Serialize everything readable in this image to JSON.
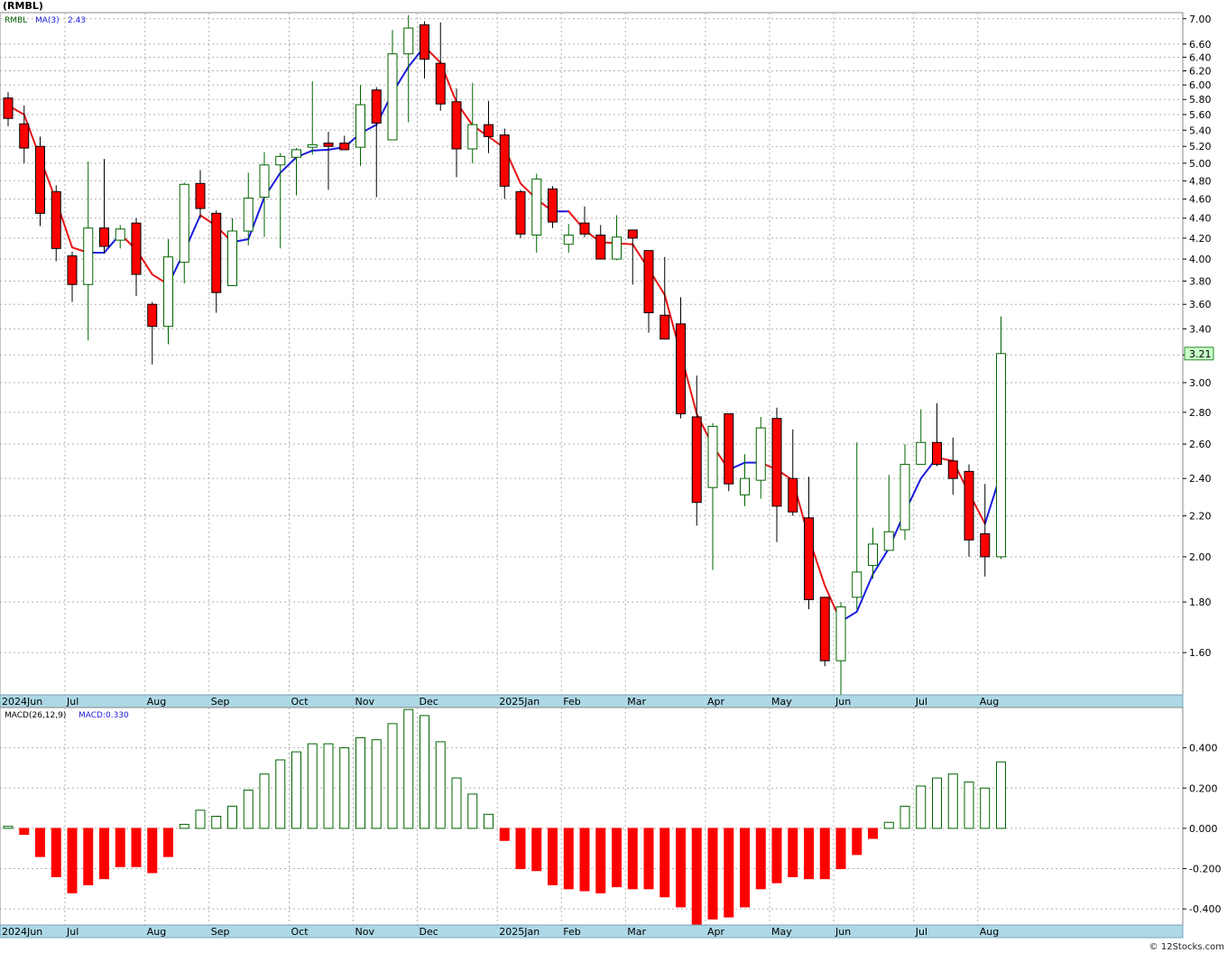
{
  "chart_title": "(RMBL)",
  "watermark": "© 12Stocks.com",
  "colors": {
    "up_body": "#ffffff",
    "up_border": "#006400",
    "down_body": "#ff0000",
    "down_border": "#000000",
    "ma_up": "#1a1adc",
    "ma_down": "#e81414",
    "grid": "#b0b0b0",
    "axis_bar": "#add8e6",
    "last_price_bg": "#c8ffc8",
    "macd_up_border": "#006400",
    "macd_down": "#ff0000"
  },
  "chart_data": [
    {
      "type": "candlestick",
      "symbol_label": "RMBL",
      "ma_label": "MA(3)",
      "ma_value": "2.43",
      "last_price": "3.21",
      "y_scale": "log",
      "ylim": [
        1.45,
        7.1
      ],
      "y_ticks": [
        "1.60",
        "1.80",
        "2.00",
        "2.20",
        "2.40",
        "2.60",
        "2.80",
        "3.00",
        "3.20",
        "3.40",
        "3.60",
        "3.80",
        "4.00",
        "4.20",
        "4.40",
        "4.60",
        "4.80",
        "5.00",
        "5.20",
        "5.40",
        "5.60",
        "5.80",
        "6.00",
        "6.20",
        "6.40",
        "6.60",
        "7.00"
      ],
      "x_labels": [
        {
          "label": "2024Jun",
          "index": 0
        },
        {
          "label": "Jul",
          "index": 4
        },
        {
          "label": "Aug",
          "index": 9
        },
        {
          "label": "Sep",
          "index": 13
        },
        {
          "label": "Oct",
          "index": 18
        },
        {
          "label": "Nov",
          "index": 22
        },
        {
          "label": "Dec",
          "index": 26
        },
        {
          "label": "2025Jan",
          "index": 31
        },
        {
          "label": "Feb",
          "index": 35
        },
        {
          "label": "Mar",
          "index": 39
        },
        {
          "label": "Apr",
          "index": 44
        },
        {
          "label": "May",
          "index": 48
        },
        {
          "label": "Jun",
          "index": 52
        },
        {
          "label": "Jul",
          "index": 57
        },
        {
          "label": "Aug",
          "index": 61
        }
      ],
      "candles": [
        {
          "o": 5.82,
          "h": 5.9,
          "l": 5.45,
          "c": 5.55
        },
        {
          "o": 5.48,
          "h": 5.72,
          "l": 5.0,
          "c": 5.18
        },
        {
          "o": 5.2,
          "h": 5.32,
          "l": 4.32,
          "c": 4.45
        },
        {
          "o": 4.68,
          "h": 4.75,
          "l": 3.98,
          "c": 4.1
        },
        {
          "o": 4.03,
          "h": 4.07,
          "l": 3.62,
          "c": 3.77
        },
        {
          "o": 3.77,
          "h": 5.02,
          "l": 3.31,
          "c": 4.3
        },
        {
          "o": 4.3,
          "h": 5.05,
          "l": 4.05,
          "c": 4.12
        },
        {
          "o": 4.18,
          "h": 4.33,
          "l": 4.1,
          "c": 4.29
        },
        {
          "o": 4.35,
          "h": 4.4,
          "l": 3.67,
          "c": 3.86
        },
        {
          "o": 3.6,
          "h": 3.62,
          "l": 3.13,
          "c": 3.42
        },
        {
          "o": 3.42,
          "h": 4.19,
          "l": 3.28,
          "c": 4.02
        },
        {
          "o": 3.97,
          "h": 4.78,
          "l": 3.78,
          "c": 4.76
        },
        {
          "o": 4.77,
          "h": 4.92,
          "l": 4.4,
          "c": 4.5
        },
        {
          "o": 4.45,
          "h": 4.48,
          "l": 3.53,
          "c": 3.7
        },
        {
          "o": 3.76,
          "h": 4.4,
          "l": 3.76,
          "c": 4.27
        },
        {
          "o": 4.27,
          "h": 4.89,
          "l": 4.13,
          "c": 4.61
        },
        {
          "o": 4.62,
          "h": 5.13,
          "l": 4.21,
          "c": 4.98
        },
        {
          "o": 4.98,
          "h": 5.12,
          "l": 4.1,
          "c": 5.08
        },
        {
          "o": 5.07,
          "h": 5.18,
          "l": 4.64,
          "c": 5.16
        },
        {
          "o": 5.19,
          "h": 6.05,
          "l": 5.1,
          "c": 5.22
        },
        {
          "o": 5.24,
          "h": 5.38,
          "l": 4.7,
          "c": 5.2
        },
        {
          "o": 5.24,
          "h": 5.33,
          "l": 5.18,
          "c": 5.16
        },
        {
          "o": 5.19,
          "h": 6.0,
          "l": 4.97,
          "c": 5.73
        },
        {
          "o": 5.93,
          "h": 5.97,
          "l": 4.62,
          "c": 5.49
        },
        {
          "o": 5.28,
          "h": 6.82,
          "l": 5.28,
          "c": 6.45
        },
        {
          "o": 6.45,
          "h": 7.06,
          "l": 5.5,
          "c": 6.85
        },
        {
          "o": 6.9,
          "h": 6.96,
          "l": 6.09,
          "c": 6.37
        },
        {
          "o": 6.31,
          "h": 6.94,
          "l": 5.65,
          "c": 5.74
        },
        {
          "o": 5.77,
          "h": 5.95,
          "l": 4.84,
          "c": 5.17
        },
        {
          "o": 5.17,
          "h": 6.03,
          "l": 5.0,
          "c": 5.47
        },
        {
          "o": 5.47,
          "h": 5.78,
          "l": 5.12,
          "c": 5.32
        },
        {
          "o": 5.34,
          "h": 5.42,
          "l": 4.6,
          "c": 4.74
        },
        {
          "o": 4.68,
          "h": 4.7,
          "l": 4.2,
          "c": 4.24
        },
        {
          "o": 4.23,
          "h": 4.88,
          "l": 4.06,
          "c": 4.82
        },
        {
          "o": 4.71,
          "h": 4.74,
          "l": 4.3,
          "c": 4.36
        },
        {
          "o": 4.14,
          "h": 4.34,
          "l": 4.06,
          "c": 4.23
        },
        {
          "o": 4.35,
          "h": 4.52,
          "l": 4.21,
          "c": 4.24
        },
        {
          "o": 4.23,
          "h": 4.33,
          "l": 4.0,
          "c": 4.0
        },
        {
          "o": 4.0,
          "h": 4.43,
          "l": 3.99,
          "c": 4.21
        },
        {
          "o": 4.28,
          "h": 4.28,
          "l": 3.77,
          "c": 4.2
        },
        {
          "o": 4.08,
          "h": 4.08,
          "l": 3.37,
          "c": 3.53
        },
        {
          "o": 3.51,
          "h": 4.02,
          "l": 3.32,
          "c": 3.32
        },
        {
          "o": 3.44,
          "h": 3.66,
          "l": 2.76,
          "c": 2.79
        },
        {
          "o": 2.77,
          "h": 3.05,
          "l": 2.15,
          "c": 2.27
        },
        {
          "o": 2.35,
          "h": 2.73,
          "l": 1.94,
          "c": 2.71
        },
        {
          "o": 2.79,
          "h": 2.79,
          "l": 2.33,
          "c": 2.37
        },
        {
          "o": 2.31,
          "h": 2.54,
          "l": 2.25,
          "c": 2.4
        },
        {
          "o": 2.39,
          "h": 2.77,
          "l": 2.29,
          "c": 2.7
        },
        {
          "o": 2.76,
          "h": 2.83,
          "l": 2.07,
          "c": 2.25
        },
        {
          "o": 2.4,
          "h": 2.69,
          "l": 2.2,
          "c": 2.22
        },
        {
          "o": 2.19,
          "h": 2.41,
          "l": 1.77,
          "c": 1.81
        },
        {
          "o": 1.82,
          "h": 1.82,
          "l": 1.55,
          "c": 1.57
        },
        {
          "o": 1.57,
          "h": 1.8,
          "l": 1.45,
          "c": 1.78
        },
        {
          "o": 1.82,
          "h": 2.61,
          "l": 1.77,
          "c": 1.93
        },
        {
          "o": 1.96,
          "h": 2.14,
          "l": 1.9,
          "c": 2.06
        },
        {
          "o": 2.03,
          "h": 2.42,
          "l": 2.03,
          "c": 2.12
        },
        {
          "o": 2.13,
          "h": 2.6,
          "l": 2.08,
          "c": 2.48
        },
        {
          "o": 2.48,
          "h": 2.82,
          "l": 2.48,
          "c": 2.61
        },
        {
          "o": 2.61,
          "h": 2.86,
          "l": 2.47,
          "c": 2.48
        },
        {
          "o": 2.5,
          "h": 2.64,
          "l": 2.31,
          "c": 2.4
        },
        {
          "o": 2.44,
          "h": 2.48,
          "l": 2.0,
          "c": 2.08
        },
        {
          "o": 2.11,
          "h": 2.37,
          "l": 1.91,
          "c": 2.0
        },
        {
          "o": 2.0,
          "h": 3.5,
          "l": 1.99,
          "c": 3.21
        }
      ],
      "ma3": [
        5.72,
        5.6,
        5.06,
        4.58,
        4.11,
        4.06,
        4.06,
        4.24,
        4.09,
        3.86,
        3.77,
        4.07,
        4.43,
        4.32,
        4.16,
        4.19,
        4.62,
        4.89,
        5.07,
        5.15,
        5.16,
        5.19,
        5.36,
        5.47,
        5.89,
        6.26,
        6.56,
        6.32,
        5.76,
        5.46,
        5.32,
        5.18,
        4.77,
        4.6,
        4.47,
        4.47,
        4.28,
        4.16,
        4.15,
        4.14,
        3.91,
        3.68,
        3.21,
        2.79,
        2.59,
        2.45,
        2.49,
        2.49,
        2.45,
        2.39,
        2.09,
        1.87,
        1.72,
        1.76,
        1.92,
        2.04,
        2.22,
        2.4,
        2.52,
        2.5,
        2.32,
        2.16,
        2.43
      ],
      "ma3_start_index": 0
    },
    {
      "type": "bar",
      "indicator_label": "MACD(26,12,9)",
      "value_label": "MACD:0.330",
      "ylim": [
        -0.48,
        0.6
      ],
      "y_ticks": [
        "0.400",
        "0.200",
        "0.000",
        "-0.200",
        "-0.400"
      ],
      "values": [
        0.01,
        -0.03,
        -0.14,
        -0.24,
        -0.32,
        -0.28,
        -0.25,
        -0.19,
        -0.19,
        -0.22,
        -0.14,
        0.02,
        0.09,
        0.06,
        0.11,
        0.19,
        0.27,
        0.34,
        0.38,
        0.42,
        0.42,
        0.4,
        0.45,
        0.44,
        0.52,
        0.59,
        0.56,
        0.43,
        0.25,
        0.17,
        0.07,
        -0.06,
        -0.2,
        -0.21,
        -0.28,
        -0.3,
        -0.31,
        -0.32,
        -0.29,
        -0.3,
        -0.3,
        -0.34,
        -0.39,
        -0.48,
        -0.45,
        -0.44,
        -0.39,
        -0.3,
        -0.27,
        -0.24,
        -0.25,
        -0.25,
        -0.2,
        -0.13,
        -0.05,
        0.03,
        0.11,
        0.21,
        0.25,
        0.27,
        0.23,
        0.2,
        0.33
      ]
    }
  ]
}
